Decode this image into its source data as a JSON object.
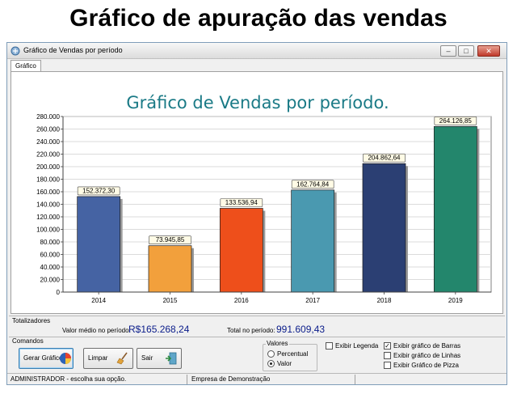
{
  "page_heading": "Gráfico de apuração das vendas",
  "window": {
    "title": "Gráfico de Vendas por período",
    "buttons": {
      "minimize": "‒",
      "maximize": "□",
      "close": "✕"
    }
  },
  "tabs": [
    {
      "label": "Gráfico"
    }
  ],
  "chart_data": {
    "type": "bar",
    "title": "Gráfico de Vendas por período.",
    "categories": [
      "2014",
      "2015",
      "2016",
      "2017",
      "2018",
      "2019"
    ],
    "values": [
      152372.3,
      73945.85,
      133536.94,
      162764.84,
      204862.64,
      264126.85
    ],
    "data_labels": [
      "152.372,30",
      "73.945,85",
      "133.536,94",
      "162.764,84",
      "204.862,64",
      "264.126,85"
    ],
    "colors": [
      "#4563a3",
      "#f2a03c",
      "#ee4f1b",
      "#4a99b0",
      "#2b3f73",
      "#23866c"
    ],
    "ylim": [
      0,
      280000
    ],
    "yticks": [
      0,
      20000,
      40000,
      60000,
      80000,
      100000,
      120000,
      140000,
      160000,
      180000,
      200000,
      220000,
      240000,
      260000,
      280000
    ],
    "ytick_labels": [
      "0",
      "20.000",
      "40.000",
      "60.000",
      "80.000",
      "100.000",
      "120.000",
      "140.000",
      "160.000",
      "180.000",
      "200.000",
      "220.000",
      "240.000",
      "260.000",
      "280.000"
    ],
    "grid": true,
    "xlabel": "",
    "ylabel": ""
  },
  "totalizadores": {
    "group_label": "Totalizadores",
    "media_label": "Valor médio no período:",
    "media_value": "R$165.268,24",
    "total_label": "Total no período:",
    "total_value": "991.609,43"
  },
  "comandos": {
    "group_label": "Comandos",
    "buttons": [
      {
        "label": "Gerar Gráfico",
        "icon": "chart-globe-icon"
      },
      {
        "label": "Limpar",
        "icon": "broom-icon"
      },
      {
        "label": "Sair",
        "icon": "exit-door-icon"
      }
    ],
    "valores": {
      "label": "Valores",
      "options": [
        {
          "label": "Percentual",
          "checked": false
        },
        {
          "label": "Valor",
          "checked": true
        }
      ]
    },
    "checkboxes": [
      {
        "label": "Exibir Legenda",
        "checked": false
      },
      {
        "label": "Exibir gráfico de Barras",
        "checked": true
      },
      {
        "label": "Exibir gráfico de Linhas",
        "checked": false
      },
      {
        "label": "Exibir Gráfico de Pizza",
        "checked": false
      }
    ]
  },
  "status": {
    "user": "ADMINISTRADOR - escolha sua opção.",
    "company": "Empresa de Demonstração"
  }
}
